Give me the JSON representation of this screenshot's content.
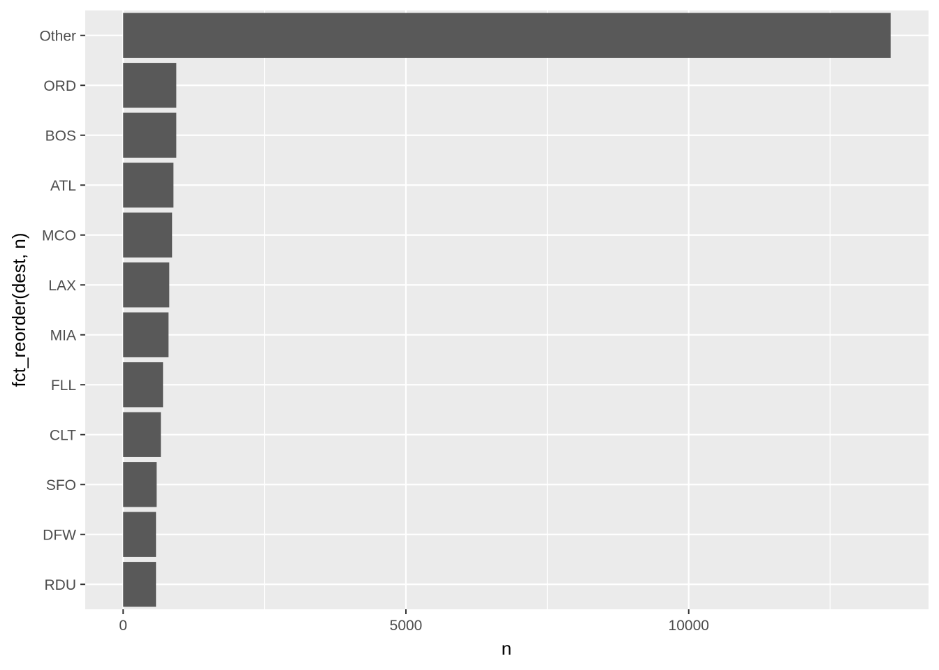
{
  "chart_data": {
    "type": "bar",
    "orientation": "horizontal",
    "categories": [
      "Other",
      "ORD",
      "BOS",
      "ATL",
      "MCO",
      "LAX",
      "MIA",
      "FLL",
      "CLT",
      "SFO",
      "DFW",
      "RDU"
    ],
    "values": [
      13570,
      940,
      940,
      890,
      865,
      816,
      803,
      705,
      667,
      593,
      581,
      581
    ],
    "xlabel": "n",
    "ylabel": "fct_reorder(dest, n)",
    "xlim": [
      -670,
      14240
    ],
    "xticks": [
      0,
      5000,
      10000
    ],
    "xtick_labels": [
      "0",
      "5000",
      "10000"
    ],
    "grid": true,
    "bar_color": "#595959",
    "panel_background": "#EBEBEB"
  }
}
